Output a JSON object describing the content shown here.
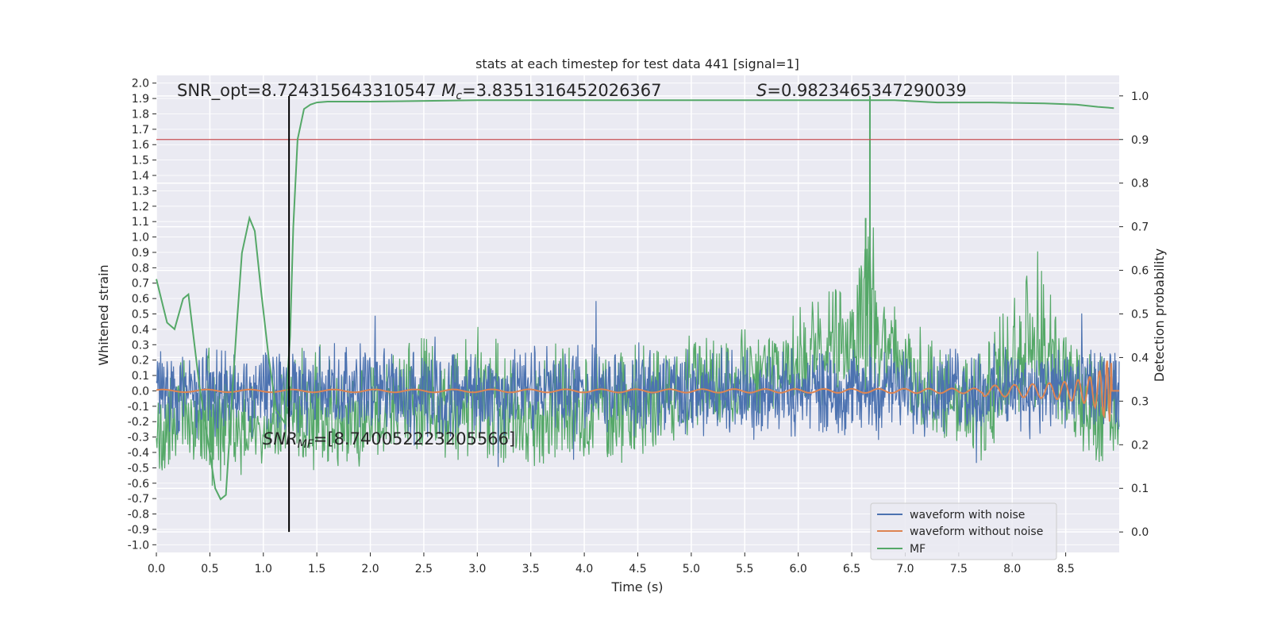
{
  "chart_data": {
    "type": "line",
    "title": "stats at each timestep for test data 441 [signal=1]",
    "xlabel": "Time (s)",
    "ylabel_left": "Whitened strain",
    "ylabel_right": "Detection probability",
    "xlim": [
      0,
      9.0
    ],
    "ylim_left": [
      -1.05,
      2.05
    ],
    "ylim_right": [
      -0.047,
      1.047
    ],
    "x_ticks": [
      "0.0",
      "0.5",
      "1.0",
      "1.5",
      "2.0",
      "2.5",
      "3.0",
      "3.5",
      "4.0",
      "4.5",
      "5.0",
      "5.5",
      "6.0",
      "6.5",
      "7.0",
      "7.5",
      "8.0",
      "8.5"
    ],
    "left_ticks": [
      "-1.0",
      "-0.9",
      "-0.8",
      "-0.7",
      "-0.6",
      "-0.5",
      "-0.4",
      "-0.3",
      "-0.2",
      "-0.1",
      "0.0",
      "0.1",
      "0.2",
      "0.3",
      "0.4",
      "0.5",
      "0.6",
      "0.7",
      "0.8",
      "0.9",
      "1.0",
      "1.1",
      "1.2",
      "1.3",
      "1.4",
      "1.5",
      "1.6",
      "1.7",
      "1.8",
      "1.9",
      "2.0"
    ],
    "right_ticks": [
      "0.0",
      "0.1",
      "0.2",
      "0.3",
      "0.4",
      "0.5",
      "0.6",
      "0.7",
      "0.8",
      "0.9",
      "1.0"
    ],
    "grid": true,
    "legend_position": "lower-right",
    "background": "#eaeaf2",
    "colors": {
      "waveform_with_noise": "#4c72b0",
      "waveform_without_noise": "#dd8452",
      "mf": "#55a868",
      "threshold": "#c44e52",
      "marker": "#000000"
    },
    "series": [
      {
        "name": "waveform with noise",
        "axis": "left",
        "kind": "noise",
        "amplitude": 0.2,
        "peaks": [
          -0.45,
          0.4
        ]
      },
      {
        "name": "waveform without noise",
        "axis": "left",
        "kind": "chirp",
        "merger_time": 8.93,
        "peak_amplitude": 0.2
      },
      {
        "name": "MF",
        "axis": "right",
        "kind": "noisy-envelope",
        "envelope_x": [
          0.0,
          0.25,
          0.5,
          0.75,
          1.0,
          1.25,
          1.5,
          1.75,
          2.0,
          2.25,
          2.5,
          2.75,
          3.0,
          3.25,
          3.5,
          3.75,
          4.0,
          4.25,
          4.5,
          4.75,
          5.0,
          5.25,
          5.5,
          5.75,
          6.0,
          6.25,
          6.5,
          6.6,
          6.7,
          6.75,
          7.0,
          7.25,
          7.5,
          7.75,
          8.0,
          8.25,
          8.5,
          8.75,
          9.0
        ],
        "envelope_top": [
          0.32,
          0.4,
          0.45,
          0.36,
          0.32,
          0.4,
          0.46,
          0.36,
          0.38,
          0.42,
          0.45,
          0.4,
          0.48,
          0.45,
          0.36,
          0.45,
          0.42,
          0.4,
          0.44,
          0.42,
          0.46,
          0.44,
          0.47,
          0.45,
          0.52,
          0.55,
          0.6,
          0.75,
          0.8,
          0.6,
          0.5,
          0.45,
          0.4,
          0.42,
          0.56,
          0.65,
          0.45,
          0.42,
          0.4
        ],
        "envelope_bottom": [
          0.13,
          0.15,
          0.1,
          0.12,
          0.15,
          0.17,
          0.13,
          0.14,
          0.15,
          0.16,
          0.18,
          0.16,
          0.17,
          0.15,
          0.12,
          0.15,
          0.16,
          0.15,
          0.16,
          0.2,
          0.22,
          0.24,
          0.25,
          0.27,
          0.3,
          0.28,
          0.32,
          0.33,
          0.3,
          0.3,
          0.25,
          0.22,
          0.2,
          0.15,
          0.25,
          0.27,
          0.2,
          0.15,
          0.15
        ],
        "spikes": [
          [
            6.67,
            1.0
          ],
          [
            6.63,
            0.72
          ]
        ]
      },
      {
        "name": "Detection probability",
        "axis": "right",
        "kind": "smooth",
        "x": [
          0.0,
          0.1,
          0.17,
          0.25,
          0.3,
          0.4,
          0.5,
          0.55,
          0.6,
          0.65,
          0.7,
          0.75,
          0.8,
          0.87,
          0.92,
          0.98,
          1.05,
          1.12,
          1.2,
          1.25,
          1.28,
          1.32,
          1.38,
          1.44,
          1.5,
          1.6,
          2.0,
          3.0,
          4.0,
          5.0,
          6.0,
          6.5,
          6.9,
          7.3,
          7.8,
          8.3,
          8.6,
          8.8,
          8.95
        ],
        "y": [
          0.58,
          0.48,
          0.465,
          0.535,
          0.545,
          0.34,
          0.18,
          0.1,
          0.075,
          0.085,
          0.28,
          0.47,
          0.64,
          0.72,
          0.69,
          0.55,
          0.4,
          0.28,
          0.25,
          0.45,
          0.7,
          0.9,
          0.97,
          0.98,
          0.985,
          0.987,
          0.987,
          0.99,
          0.99,
          0.99,
          0.99,
          0.99,
          0.99,
          0.985,
          0.985,
          0.983,
          0.98,
          0.975,
          0.972
        ]
      }
    ],
    "threshold": 0.9,
    "marker_time": 1.24,
    "annotations": {
      "snr_opt_label": "SNR_opt=8.724315643310547",
      "mc_prefix": "M",
      "mc_sub": "c",
      "mc_value": "=3.8351316452026367",
      "s_symbol": "S",
      "s_value": "=0.9823465347290039",
      "snr_mf_prefix": "SNR",
      "snr_mf_sub": "MF",
      "snr_mf_value": "=[8.740052223205566]"
    }
  }
}
